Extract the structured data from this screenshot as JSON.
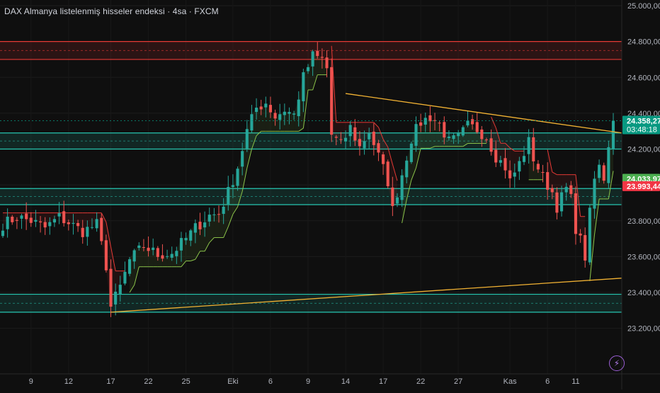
{
  "header": {
    "title": "DAX Almanya listelenmiş hisseler endeksi · 4sa · FXCM"
  },
  "colors": {
    "background": "#0f0f0f",
    "up": "#26a69a",
    "down": "#ef5350",
    "zone_teal": "#26c6b0",
    "zone_red": "#e53935",
    "trendline": "#f2b233",
    "trail_green": "#8bc34a",
    "trail_red": "#e53935"
  },
  "chart_data": {
    "type": "candlestick",
    "title": "DAX Almanya listelenmiş hisseler endeksi · 4sa · FXCM",
    "ylim": [
      23100,
      25000
    ],
    "y_ticks": [
      "25.000,00",
      "24.800,00",
      "24.600,00",
      "24.400,00",
      "24.200,00",
      "24.000,00",
      "23.800,00",
      "23.600,00",
      "23.400,00",
      "23.200,00"
    ],
    "y_tick_values": [
      25000,
      24800,
      24600,
      24400,
      24200,
      24000,
      23800,
      23600,
      23400,
      23200
    ],
    "x_ticks": [
      "9",
      "12",
      "17",
      "22",
      "25",
      "Eki",
      "6",
      "9",
      "14",
      "17",
      "22",
      "27",
      "Kas",
      "6",
      "11"
    ],
    "x_tick_bar_index": [
      6,
      14,
      23,
      31,
      39,
      49,
      57,
      65,
      73,
      81,
      89,
      97,
      108,
      116,
      122
    ],
    "zones": [
      {
        "kind": "resistance",
        "top": 24800,
        "bottom": 24700
      },
      {
        "kind": "support",
        "top": 24290,
        "bottom": 24200
      },
      {
        "kind": "support",
        "top": 23980,
        "bottom": 23890
      },
      {
        "kind": "support",
        "top": 23390,
        "bottom": 23290
      }
    ],
    "trendlines": [
      {
        "from": {
          "bar": 73,
          "value": 24510
        },
        "to": {
          "bar": 130,
          "value": 24290
        }
      },
      {
        "from": {
          "bar": 23,
          "value": 23290
        },
        "to": {
          "bar": 130,
          "value": 23480
        }
      }
    ],
    "price_tags": [
      {
        "label": "24.358,27",
        "sub": "03:48:18",
        "value": 24358,
        "color": "#089981"
      },
      {
        "label": "24.033,97",
        "value": 24034,
        "color": "#4caf50"
      },
      {
        "label": "23.993,44",
        "value": 23993,
        "color": "#f23645"
      }
    ],
    "anchors": [
      [
        0,
        23780
      ],
      [
        3,
        23820
      ],
      [
        6,
        23800
      ],
      [
        9,
        23760
      ],
      [
        12,
        23820
      ],
      [
        14,
        23790
      ],
      [
        17,
        23740
      ],
      [
        20,
        23780
      ],
      [
        22,
        23550
      ],
      [
        23,
        23320
      ],
      [
        25,
        23430
      ],
      [
        27,
        23580
      ],
      [
        30,
        23660
      ],
      [
        33,
        23610
      ],
      [
        36,
        23620
      ],
      [
        39,
        23700
      ],
      [
        41,
        23760
      ],
      [
        44,
        23830
      ],
      [
        46,
        23840
      ],
      [
        48,
        23960
      ],
      [
        50,
        24100
      ],
      [
        52,
        24300
      ],
      [
        54,
        24430
      ],
      [
        56,
        24460
      ],
      [
        58,
        24380
      ],
      [
        60,
        24420
      ],
      [
        62,
        24390
      ],
      [
        64,
        24600
      ],
      [
        66,
        24720
      ],
      [
        68,
        24700
      ],
      [
        69,
        24650
      ],
      [
        70,
        24280
      ],
      [
        72,
        24220
      ],
      [
        74,
        24320
      ],
      [
        76,
        24210
      ],
      [
        78,
        24300
      ],
      [
        80,
        24160
      ],
      [
        82,
        24020
      ],
      [
        83,
        23860
      ],
      [
        85,
        24060
      ],
      [
        87,
        24260
      ],
      [
        89,
        24350
      ],
      [
        91,
        24380
      ],
      [
        93,
        24340
      ],
      [
        95,
        24240
      ],
      [
        97,
        24260
      ],
      [
        99,
        24330
      ],
      [
        101,
        24310
      ],
      [
        103,
        24270
      ],
      [
        105,
        24160
      ],
      [
        107,
        24100
      ],
      [
        108,
        24020
      ],
      [
        110,
        24120
      ],
      [
        112,
        24240
      ],
      [
        113,
        24150
      ],
      [
        115,
        24040
      ],
      [
        117,
        23960
      ],
      [
        118,
        23880
      ],
      [
        120,
        23980
      ],
      [
        121,
        23920
      ],
      [
        122,
        23760
      ],
      [
        123,
        23690
      ],
      [
        124,
        23600
      ],
      [
        125,
        23840
      ],
      [
        126,
        24030
      ],
      [
        127,
        24100
      ],
      [
        128,
        24040
      ],
      [
        129,
        24230
      ],
      [
        130,
        24358
      ]
    ],
    "bars_count": 131
  }
}
